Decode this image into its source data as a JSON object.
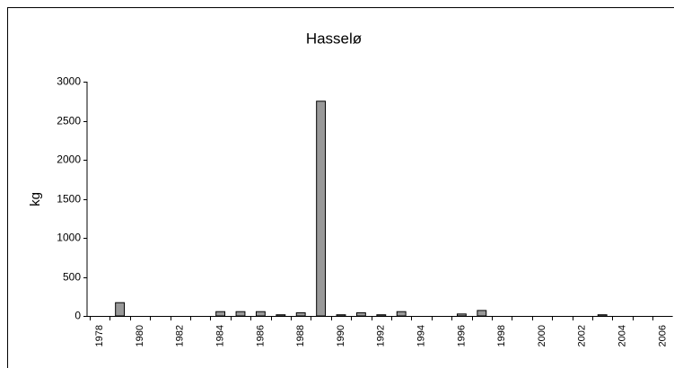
{
  "chart_data": {
    "type": "bar",
    "title": "Hasselø",
    "y_label": "kg",
    "categories": [
      "1978",
      null,
      "1980",
      null,
      "1982",
      null,
      "1984",
      null,
      "1986",
      null,
      "1988",
      null,
      "1990",
      null,
      "1992",
      null,
      "1994",
      null,
      "1996",
      null,
      "1998",
      null,
      "2000",
      null,
      "2002",
      null,
      "2004",
      null,
      "2006"
    ],
    "values": [
      0,
      170,
      0,
      0,
      0,
      0,
      55,
      55,
      55,
      15,
      40,
      2750,
      15,
      40,
      15,
      55,
      0,
      0,
      25,
      70,
      0,
      0,
      0,
      0,
      0,
      15,
      0,
      0,
      0
    ],
    "color": "#999999",
    "ylim": [
      0,
      3000
    ],
    "yticks": [
      0,
      500,
      1000,
      1500,
      2000,
      2500,
      3000
    ],
    "grid": false
  }
}
